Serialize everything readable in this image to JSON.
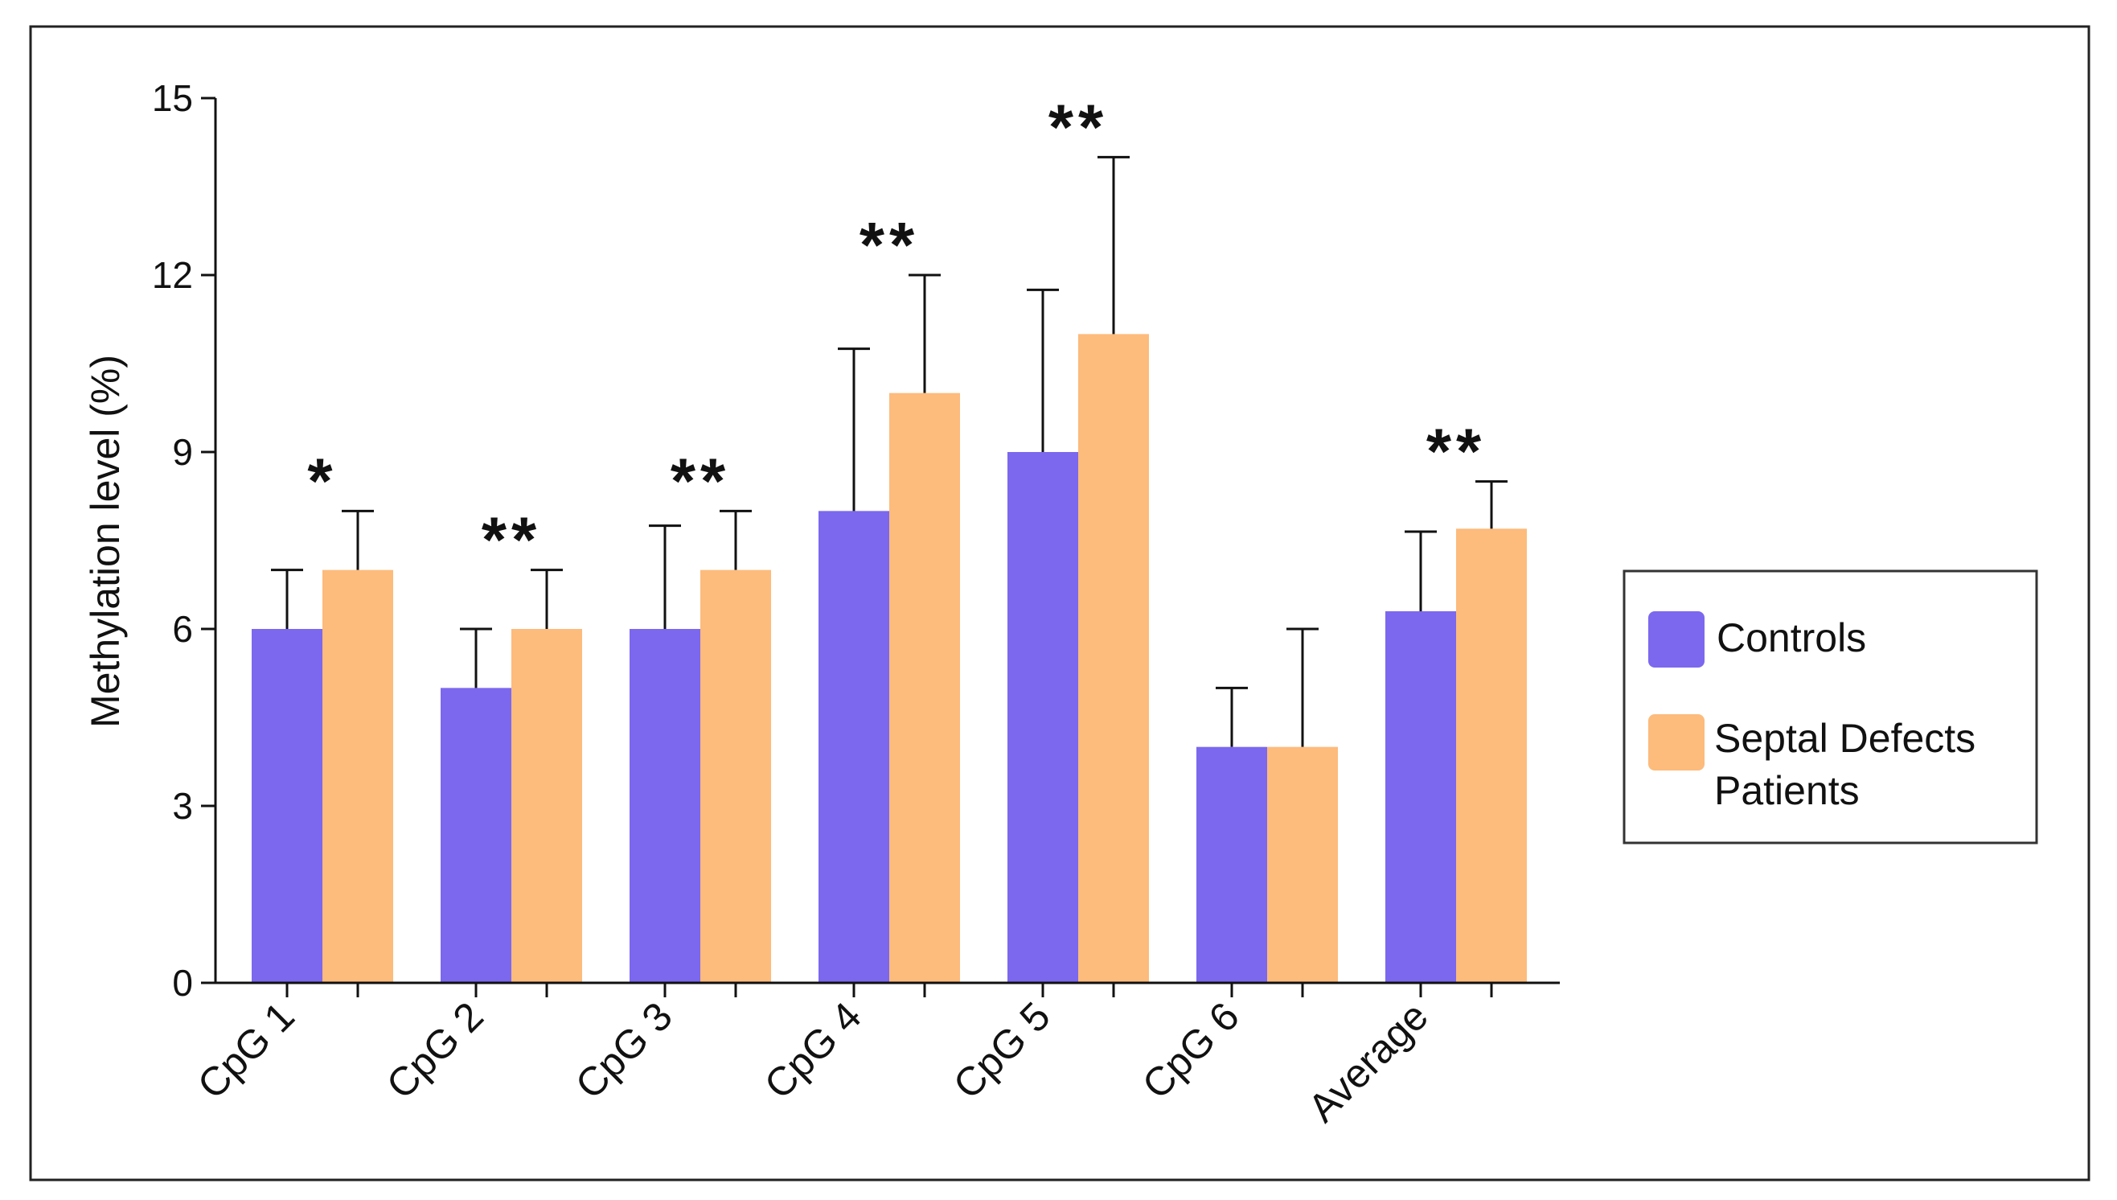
{
  "chart_data": {
    "type": "bar",
    "title": "",
    "xlabel": "",
    "ylabel": "Methylation level (%)",
    "ylim": [
      0,
      15
    ],
    "yticks": [
      "0",
      "3",
      "6",
      "9",
      "12",
      "15"
    ],
    "categories": [
      "CpG 1",
      "CpG 2",
      "CpG 3",
      "CpG 4",
      "CpG 5",
      "CpG 6",
      "Average"
    ],
    "series": [
      {
        "name": "Controls",
        "color": "#7b68ee",
        "values": [
          6.0,
          5.0,
          6.0,
          8.0,
          9.0,
          4.0,
          6.3
        ],
        "errors": [
          1.0,
          1.0,
          1.75,
          2.75,
          2.75,
          1.0,
          1.35
        ]
      },
      {
        "name": "Septal Defects Patients",
        "legend_lines": [
          "Septal Defects",
          "Patients"
        ],
        "color": "#fdbb7c",
        "values": [
          7.0,
          6.0,
          7.0,
          10.0,
          11.0,
          4.0,
          7.7
        ],
        "errors": [
          1.0,
          1.0,
          1.0,
          2.0,
          3.0,
          2.0,
          0.8
        ]
      }
    ],
    "significance": [
      "*",
      "**",
      "**",
      "**",
      "**",
      "",
      "**"
    ],
    "legend_position": "right"
  }
}
